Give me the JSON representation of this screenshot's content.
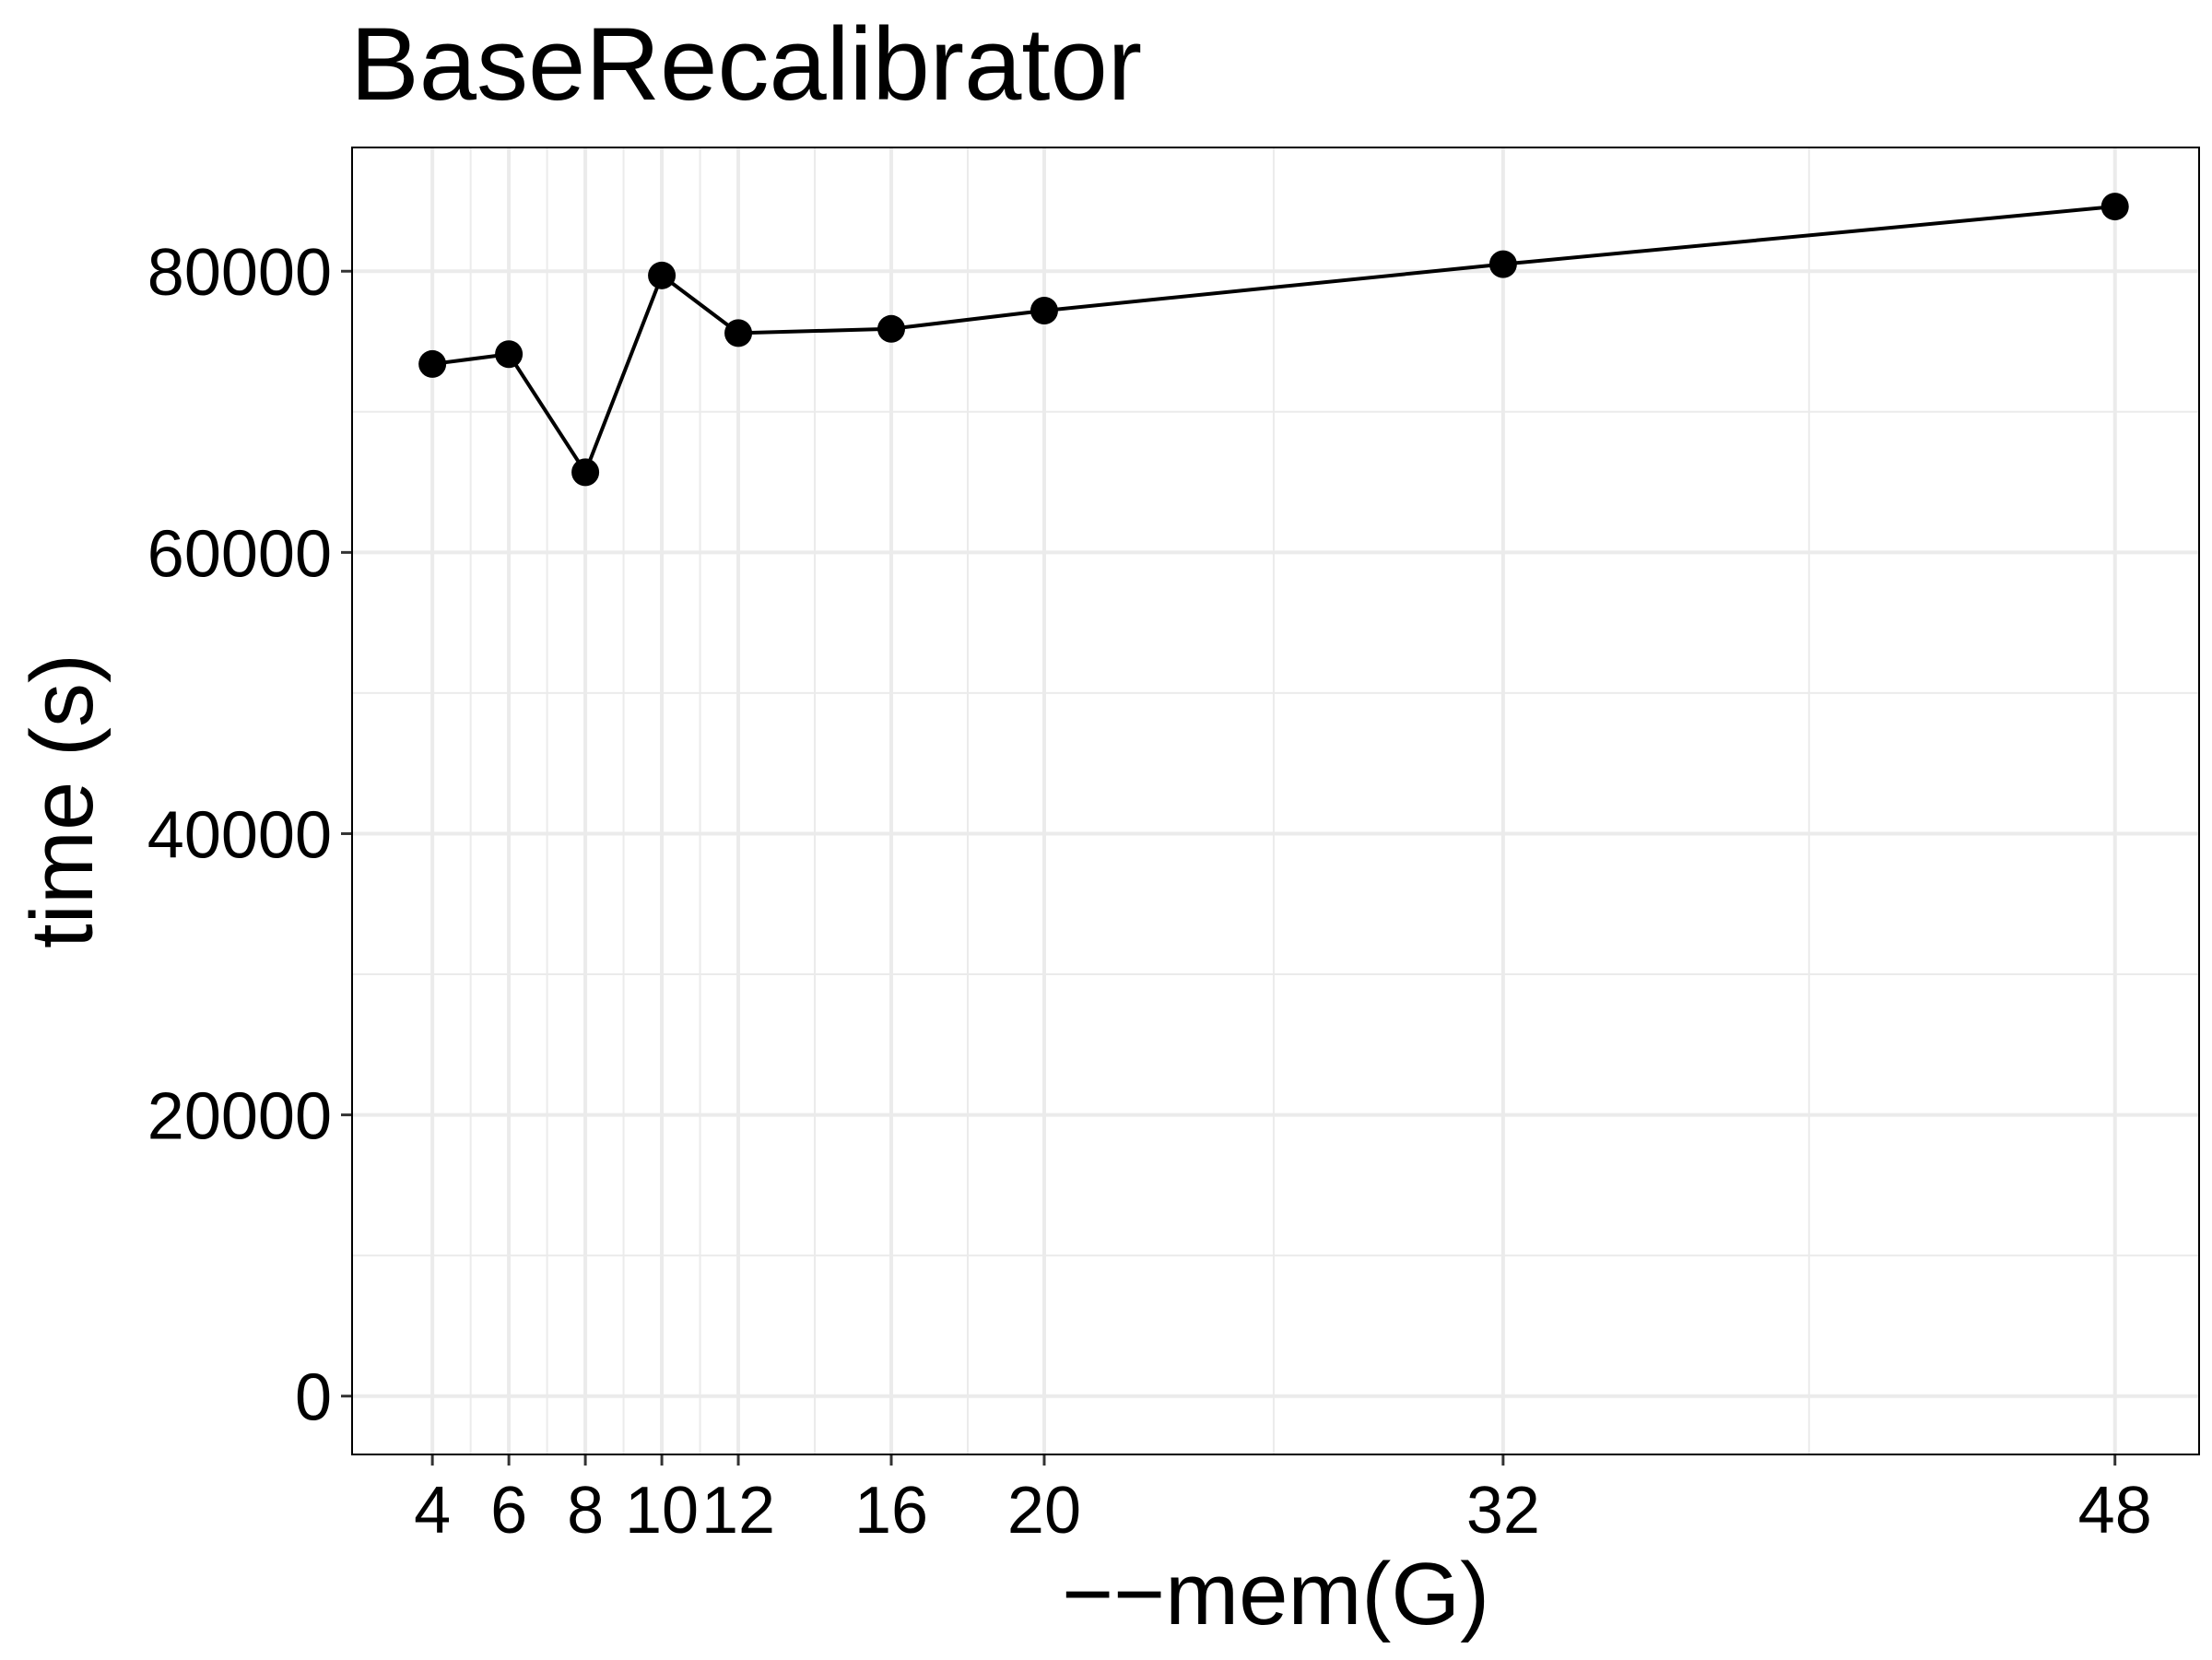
{
  "chart_data": {
    "type": "line",
    "title": "BaseRecalibrator",
    "xlabel": "−−mem(G)",
    "ylabel": "time (s)",
    "x": [
      4,
      6,
      8,
      10,
      12,
      16,
      20,
      32,
      48
    ],
    "y": [
      73400,
      74100,
      65700,
      79700,
      75600,
      75900,
      77200,
      80500,
      84600
    ],
    "xticks": [
      4,
      6,
      8,
      10,
      12,
      16,
      20,
      32,
      48
    ],
    "yticks": [
      0,
      20000,
      40000,
      60000,
      80000
    ],
    "xlim": [
      1.9,
      50.2
    ],
    "ylim": [
      -4150,
      88800
    ],
    "grid": true,
    "line_color": "#000000",
    "grid_color": "#ebebeb"
  }
}
